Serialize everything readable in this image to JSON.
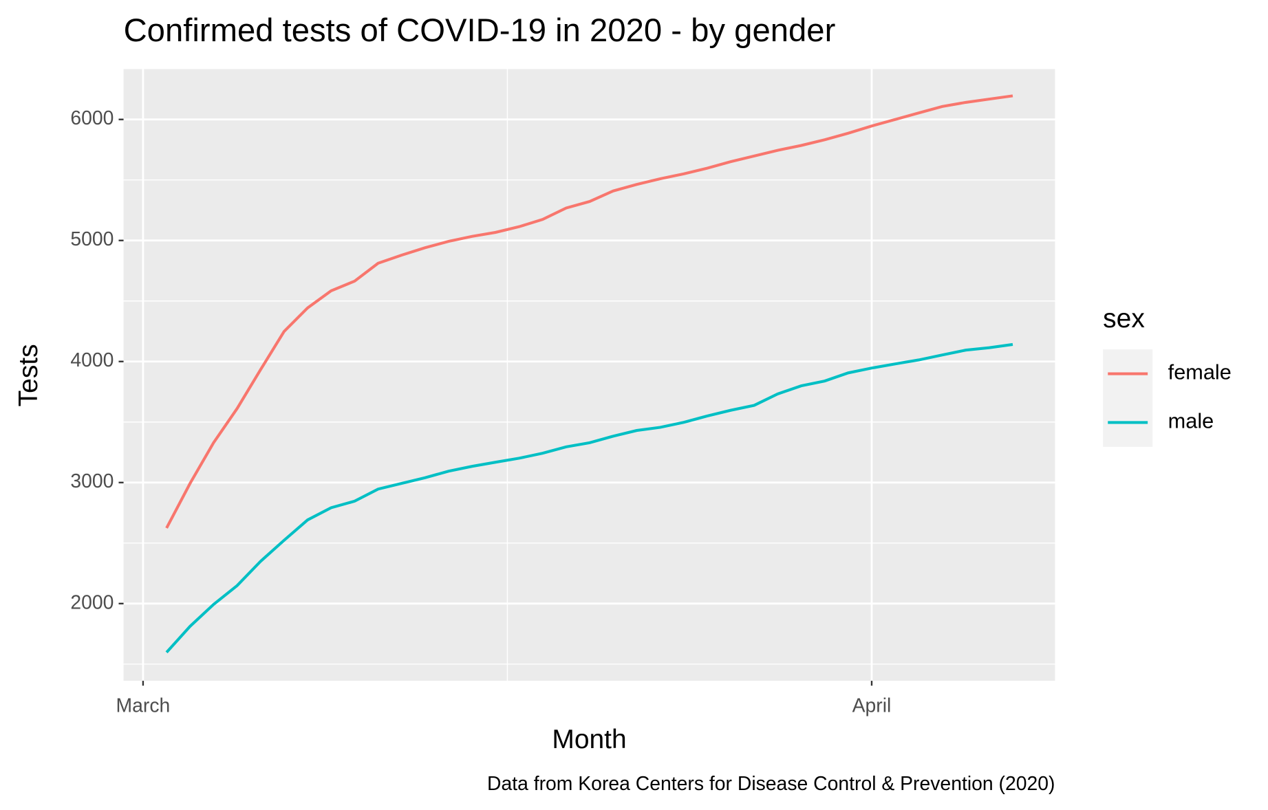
{
  "chart_data": {
    "type": "line",
    "title": "Confirmed tests of COVID-19 in 2020 - by gender",
    "x_label": "Month",
    "y_label": "Tests",
    "caption": "Data from Korea Centers for Disease Control & Prevention (2020)",
    "legend_title": "sex",
    "legend": "right",
    "grid": true,
    "x": [
      2,
      3,
      4,
      5,
      6,
      7,
      8,
      9,
      10,
      11,
      12,
      13,
      14,
      15,
      16,
      17,
      18,
      19,
      20,
      21,
      22,
      23,
      24,
      25,
      26,
      27,
      28,
      29,
      30,
      31,
      32,
      33,
      34,
      35,
      36,
      37,
      38
    ],
    "xlim": [
      0.17,
      39.8
    ],
    "xticks": [
      {
        "value": 1,
        "label": "March"
      },
      {
        "value": 32,
        "label": "April"
      }
    ],
    "ylim": [
      1362,
      6416
    ],
    "yticks": [
      2000,
      3000,
      4000,
      5000,
      6000
    ],
    "series": [
      {
        "name": "female",
        "color": "#f8766d",
        "values": [
          2624,
          2993,
          3329,
          3611,
          3933,
          4248,
          4443,
          4584,
          4664,
          4812,
          4879,
          4940,
          4993,
          5034,
          5067,
          5114,
          5174,
          5268,
          5322,
          5409,
          5463,
          5510,
          5550,
          5597,
          5651,
          5698,
          5745,
          5785,
          5832,
          5886,
          5946,
          6000,
          6054,
          6107,
          6141,
          6168,
          6195
        ]
      },
      {
        "name": "male",
        "color": "#00bfc4",
        "values": [
          1597,
          1812,
          1993,
          2148,
          2349,
          2523,
          2691,
          2792,
          2846,
          2946,
          2993,
          3040,
          3094,
          3134,
          3168,
          3201,
          3242,
          3295,
          3329,
          3383,
          3430,
          3456,
          3497,
          3550,
          3597,
          3638,
          3732,
          3799,
          3839,
          3906,
          3946,
          3980,
          4013,
          4054,
          4094,
          4114,
          4141
        ]
      }
    ]
  }
}
